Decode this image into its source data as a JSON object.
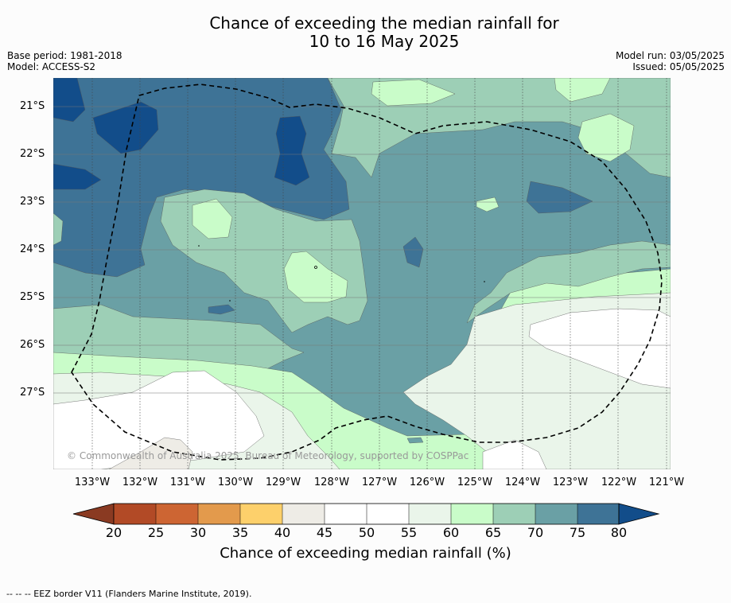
{
  "title_line1": "Chance of exceeding the median rainfall for",
  "title_line2": "10 to 16 May 2025",
  "base_period": "Base period: 1981-2018",
  "model": "Model: ACCESS-S2",
  "model_run": "Model run: 03/05/2025",
  "issued": "Issued: 05/05/2025",
  "copyright": "© Commonwealth of Australia 2025, Bureau of Meteorology, supported by COSPPac",
  "lat_labels": [
    "21°S",
    "22°S",
    "23°S",
    "24°S",
    "25°S",
    "26°S",
    "27°S"
  ],
  "lon_labels": [
    "133°W",
    "132°W",
    "131°W",
    "130°W",
    "129°W",
    "128°W",
    "127°W",
    "126°W",
    "125°W",
    "124°W",
    "123°W",
    "122°W",
    "121°W"
  ],
  "colorbar": {
    "ticks": [
      "20",
      "25",
      "30",
      "35",
      "40",
      "45",
      "50",
      "55",
      "60",
      "65",
      "70",
      "75",
      "80"
    ],
    "label": "Chance of exceeding median rainfall (%)",
    "colors": {
      "lt20": "#8a3a22",
      "20-25": "#b24a26",
      "25-30": "#cd6533",
      "30-35": "#e39a4c",
      "35-40": "#fdd06b",
      "40-45": "#eeece6",
      "45-50": "#ffffff",
      "50-55": "#ffffff",
      "55-60": "#eaf5ea",
      "60-65": "#c9fcc9",
      "65-70": "#9dcfb6",
      "70-75": "#6aa0a5",
      "75-80": "#3e7396",
      "gt80": "#124d8a"
    }
  },
  "footnote": "-- -- -- EEZ border V11 (Flanders Marine Institute, 2019)."
}
